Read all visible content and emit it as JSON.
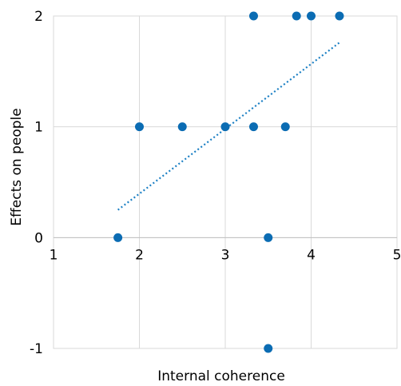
{
  "chart_data": {
    "type": "scatter",
    "title": "",
    "xlabel": "Internal coherence",
    "ylabel": "Effects on people",
    "xlim": [
      1,
      5
    ],
    "ylim": [
      -1,
      2
    ],
    "x_ticks": [
      "1",
      "2",
      "3",
      "4",
      "5"
    ],
    "y_ticks": [
      "-1",
      "0",
      "1",
      "2"
    ],
    "grid": true,
    "legend": "none",
    "series": [
      {
        "points": [
          {
            "x": 1.75,
            "y": 0
          },
          {
            "x": 2.0,
            "y": 1
          },
          {
            "x": 2.5,
            "y": 1
          },
          {
            "x": 3.0,
            "y": 1
          },
          {
            "x": 3.33,
            "y": 1
          },
          {
            "x": 3.33,
            "y": 2
          },
          {
            "x": 3.5,
            "y": 0
          },
          {
            "x": 3.5,
            "y": -1
          },
          {
            "x": 3.7,
            "y": 1
          },
          {
            "x": 3.83,
            "y": 2
          },
          {
            "x": 4.0,
            "y": 2
          },
          {
            "x": 4.33,
            "y": 2
          }
        ]
      }
    ],
    "trendline": {
      "style": "dotted",
      "x_start": 1.75,
      "y_start": 0.25,
      "x_end": 4.33,
      "y_end": 1.76
    },
    "colors": {
      "points": "#0b6cb3",
      "trendline": "#1a7fc4",
      "grid": "#d9d9d9"
    }
  }
}
